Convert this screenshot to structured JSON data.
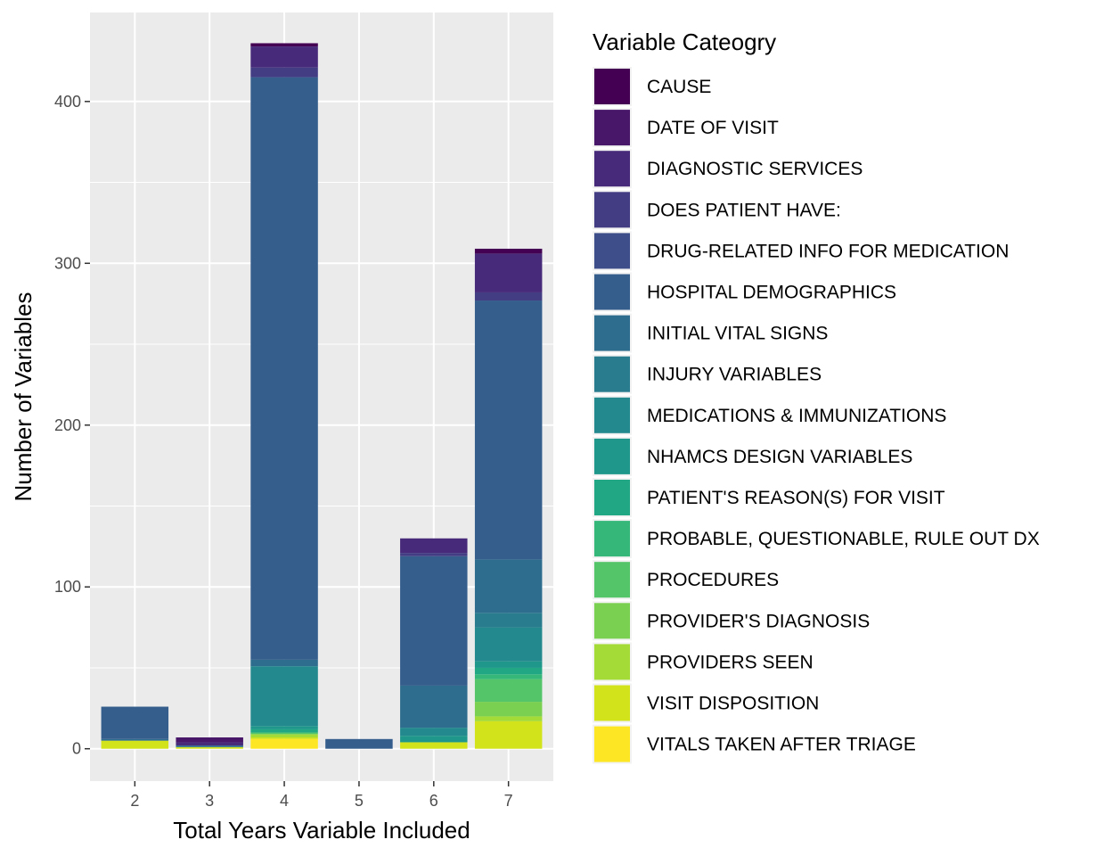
{
  "chart_data": {
    "type": "bar",
    "stacked": true,
    "title": "",
    "xlabel": "Total Years Variable Included",
    "ylabel": "Number of Variables",
    "categories": [
      "2",
      "3",
      "4",
      "5",
      "6",
      "7"
    ],
    "ylim": [
      -20,
      455
    ],
    "yticks": [
      0,
      100,
      200,
      300,
      400
    ],
    "grid": true,
    "legend_title": "Variable Cateogry",
    "legend_position": "right",
    "series": [
      {
        "name": "CAUSE",
        "color": "#440154",
        "values": [
          0,
          0,
          2,
          0,
          0,
          3
        ]
      },
      {
        "name": "DATE OF VISIT",
        "color": "#481769",
        "values": [
          0,
          3,
          0,
          0,
          0,
          0
        ]
      },
      {
        "name": "DIAGNOSTIC SERVICES",
        "color": "#472A7A",
        "values": [
          0,
          2,
          13,
          0,
          9,
          24
        ]
      },
      {
        "name": "DOES PATIENT HAVE:",
        "color": "#433D84",
        "values": [
          0,
          0,
          6,
          0,
          2,
          5
        ]
      },
      {
        "name": "DRUG-RELATED INFO FOR MEDICATION",
        "color": "#3D4E8A",
        "values": [
          0,
          0,
          0,
          0,
          0,
          0
        ]
      },
      {
        "name": "HOSPITAL DEMOGRAPHICS",
        "color": "#355E8D",
        "values": [
          20,
          0,
          360,
          6,
          80,
          160
        ]
      },
      {
        "name": "INITIAL VITAL SIGNS",
        "color": "#2E6D8E",
        "values": [
          1,
          1,
          4,
          0,
          26,
          33
        ]
      },
      {
        "name": "INJURY VARIABLES",
        "color": "#297B8E",
        "values": [
          0,
          0,
          0,
          0,
          0,
          9
        ]
      },
      {
        "name": "MEDICATIONS & IMMUNIZATIONS",
        "color": "#23898E",
        "values": [
          0,
          0,
          37,
          0,
          5,
          21
        ]
      },
      {
        "name": "NHAMCS DESIGN VARIABLES",
        "color": "#1F988B",
        "values": [
          0,
          0,
          2,
          0,
          4,
          4
        ]
      },
      {
        "name": "PATIENT'S REASON(S) FOR VISIT",
        "color": "#22A785",
        "values": [
          0,
          0,
          2,
          0,
          0,
          4
        ]
      },
      {
        "name": "PROBABLE, QUESTIONABLE, RULE OUT DX",
        "color": "#35B779",
        "values": [
          0,
          0,
          0,
          0,
          0,
          3
        ]
      },
      {
        "name": "PROCEDURES",
        "color": "#54C568",
        "values": [
          0,
          0,
          1,
          0,
          0,
          14
        ]
      },
      {
        "name": "PROVIDER'S DIAGNOSIS",
        "color": "#7AD151",
        "values": [
          0,
          0,
          0,
          0,
          0,
          9
        ]
      },
      {
        "name": "PROVIDERS SEEN",
        "color": "#A5DB36",
        "values": [
          0,
          0,
          2,
          0,
          0,
          3
        ]
      },
      {
        "name": "VISIT DISPOSITION",
        "color": "#D2E21B",
        "values": [
          5,
          1,
          1,
          0,
          4,
          17
        ]
      },
      {
        "name": "VITALS TAKEN AFTER TRIAGE",
        "color": "#FDE725",
        "values": [
          0,
          0,
          6,
          0,
          0,
          0
        ]
      }
    ]
  }
}
